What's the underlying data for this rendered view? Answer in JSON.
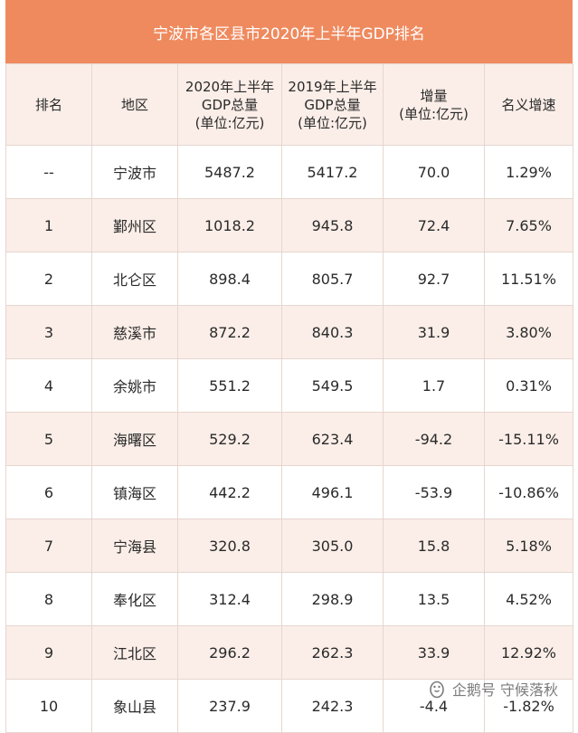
{
  "title": "宁波市各区县市2020年上半年GDP排名",
  "headers": [
    "排名",
    "地区",
    "2020年上半年\nGDP总量\n(单位:亿元)",
    "2019年上半年\nGDP总量\n(单位:亿元)",
    "增量\n(单位:亿元)",
    "名义增速"
  ],
  "rows": [
    [
      "--",
      "宁波市",
      "5487.2",
      "5417.2",
      "70.0",
      "1.29%"
    ],
    [
      "1",
      "鄞州区",
      "1018.2",
      "945.8",
      "72.4",
      "7.65%"
    ],
    [
      "2",
      "北仑区",
      "898.4",
      "805.7",
      "92.7",
      "11.51%"
    ],
    [
      "3",
      "慈溪市",
      "872.2",
      "840.3",
      "31.9",
      "3.80%"
    ],
    [
      "4",
      "余姚市",
      "551.2",
      "549.5",
      "1.7",
      "0.31%"
    ],
    [
      "5",
      "海曙区",
      "529.2",
      "623.4",
      "-94.2",
      "-15.11%"
    ],
    [
      "6",
      "镇海区",
      "442.2",
      "496.1",
      "-53.9",
      "-10.86%"
    ],
    [
      "7",
      "宁海县",
      "320.8",
      "305.0",
      "15.8",
      "5.18%"
    ],
    [
      "8",
      "奉化区",
      "312.4",
      "298.9",
      "13.5",
      "4.52%"
    ],
    [
      "9",
      "江北区",
      "296.2",
      "262.3",
      "33.9",
      "12.92%"
    ],
    [
      "10",
      "象山县",
      "237.9",
      "242.3",
      "-4.4",
      "-1.82%"
    ]
  ],
  "watermark": "企鹅号 守候落秋",
  "colors": {
    "title_bg": "#ef8a5e",
    "stripe_bg": "#fbeee8",
    "border": "#e6d6cf"
  }
}
